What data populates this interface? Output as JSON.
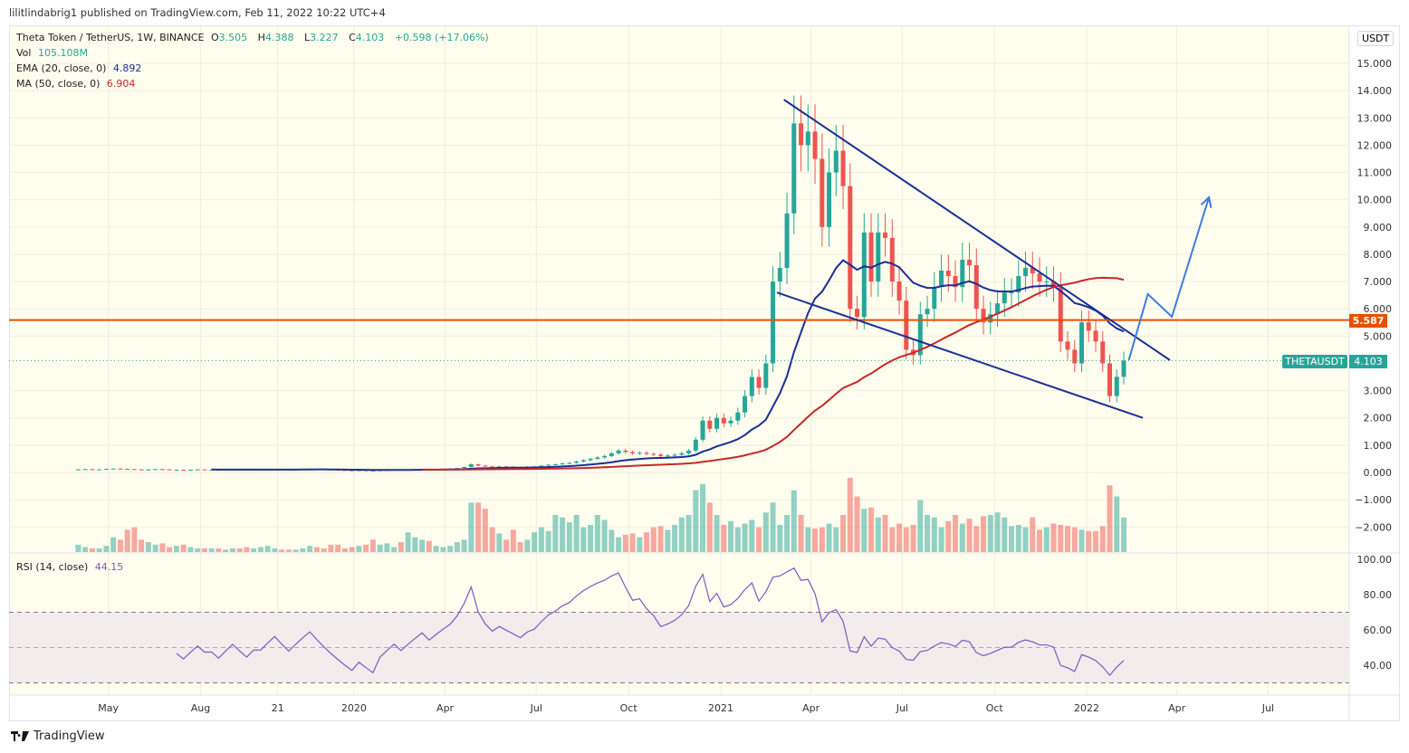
{
  "published": "lilitlindabrig1 published on TradingView.com, Feb 11, 2022 10:22 UTC+4",
  "legend": {
    "symbol": "Theta Token / TetherUS, 1W, BINANCE",
    "o_label": "O",
    "o": "3.505",
    "h_label": "H",
    "h": "4.388",
    "l_label": "L",
    "l": "3.227",
    "c_label": "C",
    "c": "4.103",
    "change": "+0.598 (+17.06%)",
    "vol_label": "Vol",
    "vol": "105.108M",
    "ema_label": "EMA (20, close, 0)",
    "ema": "4.892",
    "ma_label": "MA (50, close, 0)",
    "ma": "6.904",
    "rsi_label": "RSI (14, close)",
    "rsi": "44.15"
  },
  "currency_button": "USDT",
  "symbol_tag": "THETAUSDT",
  "last_price": "4.103",
  "hline_price_label": "5.587",
  "brand": "TradingView",
  "colors": {
    "up": "#26a69a",
    "down": "#ef5350",
    "ema": "#1a2f96",
    "ma": "#c62828",
    "hline": "#e65100",
    "rsi": "#7e57c2",
    "trend": "#1a2f96",
    "arrow": "#3d7be0",
    "bg": "#fefdee"
  },
  "chart_data": {
    "type": "candlestick",
    "interval": "1W",
    "start_date": "2019-04-01",
    "close": [
      0.11,
      0.12,
      0.1,
      0.11,
      0.13,
      0.14,
      0.13,
      0.12,
      0.11,
      0.1,
      0.11,
      0.12,
      0.11,
      0.1,
      0.1,
      0.09,
      0.1,
      0.11,
      0.1,
      0.1,
      0.09,
      0.1,
      0.11,
      0.1,
      0.09,
      0.1,
      0.1,
      0.11,
      0.12,
      0.11,
      0.1,
      0.11,
      0.12,
      0.13,
      0.12,
      0.11,
      0.1,
      0.09,
      0.08,
      0.07,
      0.08,
      0.07,
      0.06,
      0.08,
      0.09,
      0.1,
      0.09,
      0.1,
      0.11,
      0.12,
      0.11,
      0.12,
      0.13,
      0.14,
      0.16,
      0.2,
      0.3,
      0.25,
      0.22,
      0.2,
      0.22,
      0.21,
      0.2,
      0.19,
      0.21,
      0.22,
      0.25,
      0.28,
      0.3,
      0.33,
      0.35,
      0.4,
      0.45,
      0.5,
      0.55,
      0.6,
      0.7,
      0.8,
      0.75,
      0.7,
      0.72,
      0.68,
      0.65,
      0.6,
      0.62,
      0.65,
      0.7,
      0.8,
      1.2,
      1.9,
      1.6,
      2.0,
      1.8,
      1.9,
      2.2,
      2.8,
      3.5,
      3.1,
      4.0,
      7.0,
      7.5,
      9.5,
      12.8,
      12.0,
      12.5,
      11.5,
      9.0,
      11.0,
      11.8,
      10.5,
      6.0,
      5.7,
      8.8,
      7.0,
      8.8,
      8.6,
      7.0,
      6.3,
      4.5,
      4.3,
      5.8,
      6.0,
      6.8,
      7.4,
      7.2,
      6.8,
      7.8,
      7.6,
      6.0,
      5.5,
      5.8,
      6.2,
      6.6,
      6.6,
      7.2,
      7.5,
      7.3,
      7.0,
      7.0,
      6.8,
      4.8,
      4.5,
      4.0,
      5.5,
      5.2,
      4.8,
      4.0,
      2.8,
      3.505,
      4.103
    ],
    "volume": [
      0.6,
      0.4,
      0.3,
      0.3,
      0.5,
      1.2,
      1.0,
      1.8,
      2.0,
      1.0,
      0.8,
      0.6,
      0.7,
      0.4,
      0.5,
      0.6,
      0.4,
      0.3,
      0.3,
      0.3,
      0.3,
      0.2,
      0.3,
      0.3,
      0.4,
      0.3,
      0.4,
      0.5,
      0.3,
      0.2,
      0.2,
      0.2,
      0.3,
      0.5,
      0.4,
      0.3,
      0.6,
      0.6,
      0.3,
      0.4,
      0.5,
      0.6,
      1.0,
      0.6,
      0.7,
      0.4,
      0.8,
      1.6,
      1.2,
      1.0,
      0.9,
      0.5,
      0.4,
      0.5,
      0.8,
      1.0,
      4.0,
      4.0,
      3.5,
      2.0,
      1.5,
      1.0,
      1.8,
      0.8,
      1.0,
      1.6,
      2.0,
      1.7,
      3.0,
      2.8,
      2.4,
      3.0,
      2.0,
      2.2,
      3.0,
      2.6,
      1.8,
      1.2,
      1.4,
      1.5,
      1.2,
      1.6,
      2.0,
      2.1,
      1.8,
      2.2,
      2.8,
      3.0,
      5.0,
      5.5,
      4.0,
      3.0,
      2.2,
      2.5,
      2.0,
      2.3,
      2.6,
      2.0,
      3.2,
      4.0,
      2.2,
      3.0,
      5.0,
      3.0,
      2.0,
      1.9,
      2.0,
      2.3,
      2.0,
      3.0,
      6.0,
      4.5,
      3.5,
      3.6,
      2.8,
      3.0,
      2.0,
      2.3,
      2.0,
      2.2,
      4.2,
      3.0,
      2.8,
      2.0,
      2.5,
      3.0,
      2.3,
      2.7,
      2.1,
      2.9,
      3.0,
      3.2,
      2.8,
      2.1,
      2.2,
      2.0,
      2.8,
      1.8,
      2.0,
      2.3,
      2.2,
      2.1,
      2.0,
      1.8,
      1.7,
      1.7,
      2.1,
      5.4,
      4.5,
      2.8
    ],
    "hline": 5.587,
    "y_ticks": [
      "15.000",
      "14.000",
      "13.000",
      "12.000",
      "11.000",
      "10.000",
      "9.000",
      "8.000",
      "7.000",
      "6.000",
      "5.000",
      "3.000",
      "2.000",
      "1.000",
      "0.000",
      "−1.000",
      "−2.000"
    ],
    "rsi_ticks": [
      "100.00",
      "80.00",
      "60.00",
      "40.00"
    ],
    "rsi_bands": [
      70,
      50,
      30
    ],
    "x_ticks": [
      {
        "date": "2019-05-01",
        "label": "May"
      },
      {
        "date": "2019-08-01",
        "label": "Aug"
      },
      {
        "date": "2019-10-17",
        "label": "21"
      },
      {
        "date": "2020-01-01",
        "label": "2020"
      },
      {
        "date": "2020-04-01",
        "label": "Apr"
      },
      {
        "date": "2020-07-01",
        "label": "Jul"
      },
      {
        "date": "2020-10-01",
        "label": "Oct"
      },
      {
        "date": "2021-01-01",
        "label": "2021"
      },
      {
        "date": "2021-04-01",
        "label": "Apr"
      },
      {
        "date": "2021-07-01",
        "label": "Jul"
      },
      {
        "date": "2021-10-01",
        "label": "Oct"
      },
      {
        "date": "2022-01-01",
        "label": "2022"
      },
      {
        "date": "2022-04-01",
        "label": "Apr"
      },
      {
        "date": "2022-07-01",
        "label": "Jul"
      }
    ],
    "drawings": {
      "upper_trendline": [
        {
          "date": "2021-03-05",
          "price": 13.67
        },
        {
          "date": "2022-03-25",
          "price": 4.12
        }
      ],
      "lower_trendline": [
        {
          "date": "2021-02-26",
          "price": 6.6
        },
        {
          "date": "2022-02-26",
          "price": 2.0
        }
      ],
      "projection_arrow": [
        {
          "date": "2022-02-12",
          "price": 4.12
        },
        {
          "date": "2022-03-03",
          "price": 6.54
        },
        {
          "date": "2022-03-27",
          "price": 5.71
        },
        {
          "date": "2022-05-03",
          "price": 10.09
        }
      ]
    }
  }
}
